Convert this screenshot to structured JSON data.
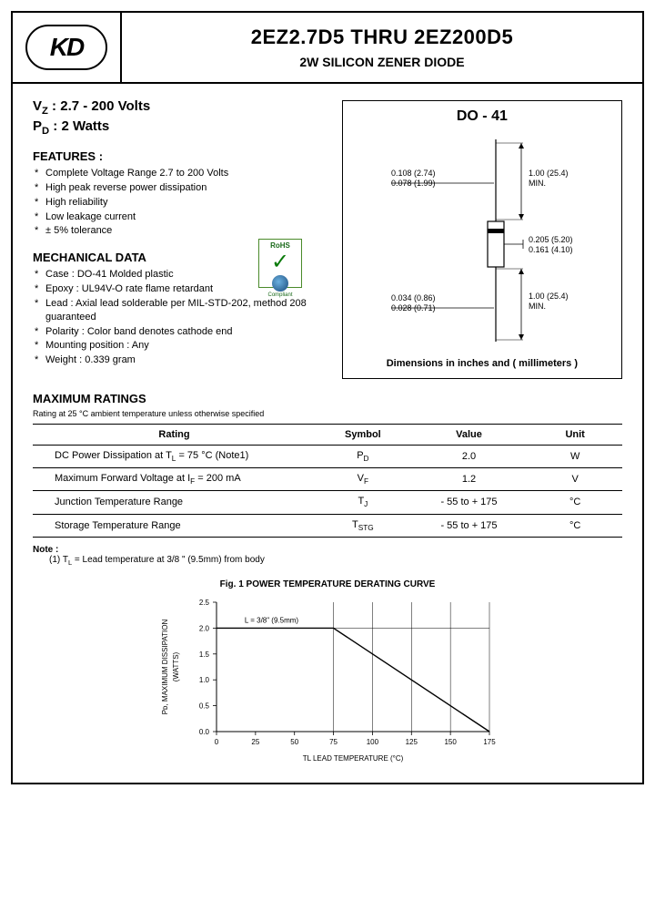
{
  "header": {
    "logo_text": "KD",
    "title": "2EZ2.7D5 THRU 2EZ200D5",
    "subtitle": "2W SILICON ZENER DIODE"
  },
  "specs": {
    "vz_label": "V",
    "vz_sub": "Z",
    "vz_value": " : 2.7 - 200 Volts",
    "pd_label": "P",
    "pd_sub": "D",
    "pd_value": " : 2 Watts"
  },
  "features": {
    "heading": "FEATURES :",
    "items": [
      "Complete Voltage Range 2.7 to 200 Volts",
      "High peak reverse power dissipation",
      "High reliability",
      "Low leakage current",
      "± 5% tolerance"
    ]
  },
  "rohs": {
    "top": "RoHS",
    "bottom": "Compliant"
  },
  "mechanical": {
    "heading": "MECHANICAL DATA",
    "items": [
      "Case : DO-41 Molded plastic",
      "Epoxy : UL94V-O rate flame retardant",
      "Lead : Axial lead solderable per MIL-STD-202, method 208 guaranteed",
      "Polarity : Color band denotes cathode end",
      "Mounting position : Any",
      "Weight : 0.339 gram"
    ]
  },
  "package": {
    "title": "DO - 41",
    "caption": "Dimensions in inches and ( millimeters )",
    "dims": {
      "lead_dia_top": "0.108 (2.74)",
      "lead_dia_bot": "0.078 (1.99)",
      "body_dia_top": "0.205 (5.20)",
      "body_dia_bot": "0.161 (4.10)",
      "lead_len": "1.00 (25.4)",
      "lead_len_sub": "MIN.",
      "wire_dia_top": "0.034 (0.86)",
      "wire_dia_bot": "0.028 (0.71)"
    },
    "colors": {
      "line": "#000000",
      "fill": "#ffffff"
    }
  },
  "ratings": {
    "heading": "MAXIMUM RATINGS",
    "subnote": "Rating at 25 °C ambient temperature unless otherwise specified",
    "columns": [
      "Rating",
      "Symbol",
      "Value",
      "Unit"
    ],
    "col_widths": [
      "48%",
      "16%",
      "20%",
      "16%"
    ],
    "rows": [
      [
        "DC Power Dissipation at T_L = 75 °C (Note1)",
        "P_D",
        "2.0",
        "W"
      ],
      [
        "Maximum Forward Voltage at I_F = 200 mA",
        "V_F",
        "1.2",
        "V"
      ],
      [
        "Junction Temperature Range",
        "T_J",
        "- 55 to + 175",
        "°C"
      ],
      [
        "Storage Temperature Range",
        "T_STG",
        "- 55 to + 175",
        "°C"
      ]
    ]
  },
  "footnote": {
    "heading": "Note :",
    "text": "(1) T_L = Lead temperature at 3/8 \" (9.5mm) from body"
  },
  "chart": {
    "title": "Fig. 1  POWER TEMPERATURE DERATING CURVE",
    "type": "line",
    "xlabel": "TL  LEAD TEMPERATURE (°C)",
    "ylabel": "P_D, MAXIMUM DISSIPATION (WATTS)",
    "annotation": "L = 3/8\" (9.5mm)",
    "xlim": [
      0,
      175
    ],
    "ylim": [
      0,
      2.5
    ],
    "xticks": [
      0,
      25,
      50,
      75,
      100,
      125,
      150,
      175
    ],
    "yticks": [
      0,
      0.5,
      1.0,
      1.5,
      2.0,
      2.5
    ],
    "data_x": [
      0,
      75,
      175
    ],
    "data_y": [
      2.0,
      2.0,
      0
    ],
    "grid_x": [
      75,
      100,
      125,
      150,
      175
    ],
    "grid_y": [
      2.0
    ],
    "line_color": "#000000",
    "grid_color": "#000000",
    "background_color": "#ffffff",
    "axis_fontsize": 8,
    "label_fontsize": 8,
    "line_width": 1.4,
    "grid_width": 0.5
  }
}
